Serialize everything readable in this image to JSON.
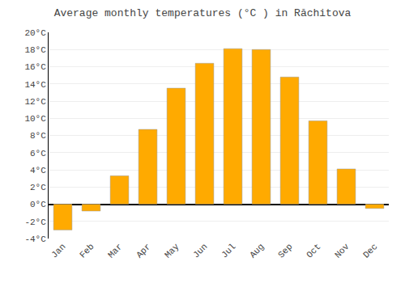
{
  "chart_data": {
    "type": "bar",
    "title": "Average monthly temperatures (°C ) in Răchitova",
    "categories": [
      "Jan",
      "Feb",
      "Mar",
      "Apr",
      "May",
      "Jun",
      "Jul",
      "Aug",
      "Sep",
      "Oct",
      "Nov",
      "Dec"
    ],
    "values": [
      -3.0,
      -0.8,
      3.3,
      8.7,
      13.5,
      16.4,
      18.1,
      18.0,
      14.8,
      9.7,
      4.1,
      -0.5
    ],
    "color": "#FFAA00",
    "ylim": [
      -4,
      20
    ],
    "yticks": [
      {
        "value": -4,
        "label": "-4°C"
      },
      {
        "value": -2,
        "label": "-2°C"
      },
      {
        "value": 0,
        "label": "0°C"
      },
      {
        "value": 2,
        "label": "2°C"
      },
      {
        "value": 4,
        "label": "4°C"
      },
      {
        "value": 6,
        "label": "6°C"
      },
      {
        "value": 8,
        "label": "8°C"
      },
      {
        "value": 10,
        "label": "10°C"
      },
      {
        "value": 12,
        "label": "12°C"
      },
      {
        "value": 14,
        "label": "14°C"
      },
      {
        "value": 16,
        "label": "16°C"
      },
      {
        "value": 18,
        "label": "18°C"
      },
      {
        "value": 20,
        "label": "20°C"
      }
    ],
    "grid": true
  }
}
